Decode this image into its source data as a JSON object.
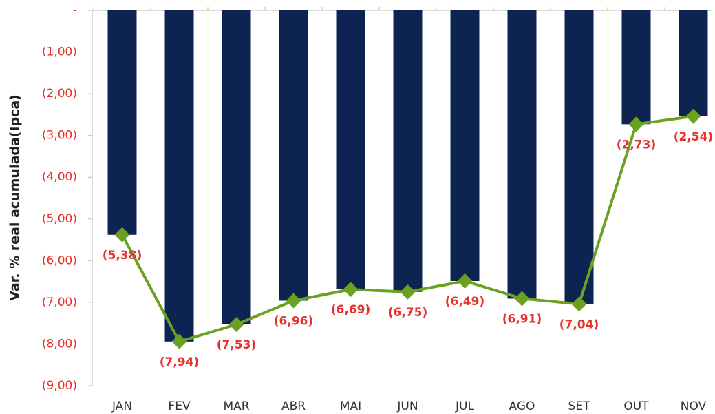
{
  "chart_data": {
    "type": "bar",
    "y_label": "Var. % real acumulada(Ipca)",
    "categories": [
      "JAN",
      "FEV",
      "MAR",
      "ABR",
      "MAI",
      "JUN",
      "JUL",
      "AGO",
      "SET",
      "OUT",
      "NOV"
    ],
    "series": [
      {
        "type": "bar",
        "color": "#0d2452",
        "values": [
          -5.38,
          -7.94,
          -7.53,
          -6.96,
          -6.69,
          -6.75,
          -6.49,
          -6.91,
          -7.04,
          -2.73,
          -2.54
        ]
      },
      {
        "type": "line",
        "color": "#6aa121",
        "values": [
          -5.38,
          -7.94,
          -7.53,
          -6.96,
          -6.69,
          -6.75,
          -6.49,
          -6.91,
          -7.04,
          -2.73,
          -2.54
        ],
        "value_labels": [
          "(5,38)",
          "(7,94)",
          "(7,53)",
          "(6,96)",
          "(6,69)",
          "(6,75)",
          "(6,49)",
          "(6,91)",
          "(7,04)",
          "(2,73)",
          "(2,54)"
        ]
      }
    ],
    "ylim": [
      -9,
      0
    ],
    "yticks": [
      {
        "value": 0,
        "label": "-"
      },
      {
        "value": -1,
        "label": "(1,00)"
      },
      {
        "value": -2,
        "label": "(2,00)"
      },
      {
        "value": -3,
        "label": "(3,00)"
      },
      {
        "value": -4,
        "label": "(4,00)"
      },
      {
        "value": -5,
        "label": "(5,00)"
      },
      {
        "value": -6,
        "label": "(6,00)"
      },
      {
        "value": -7,
        "label": "(7,00)"
      },
      {
        "value": -8,
        "label": "(8,00)"
      },
      {
        "value": -9,
        "label": "(9,00)"
      }
    ],
    "label_color": "#e8302a"
  }
}
